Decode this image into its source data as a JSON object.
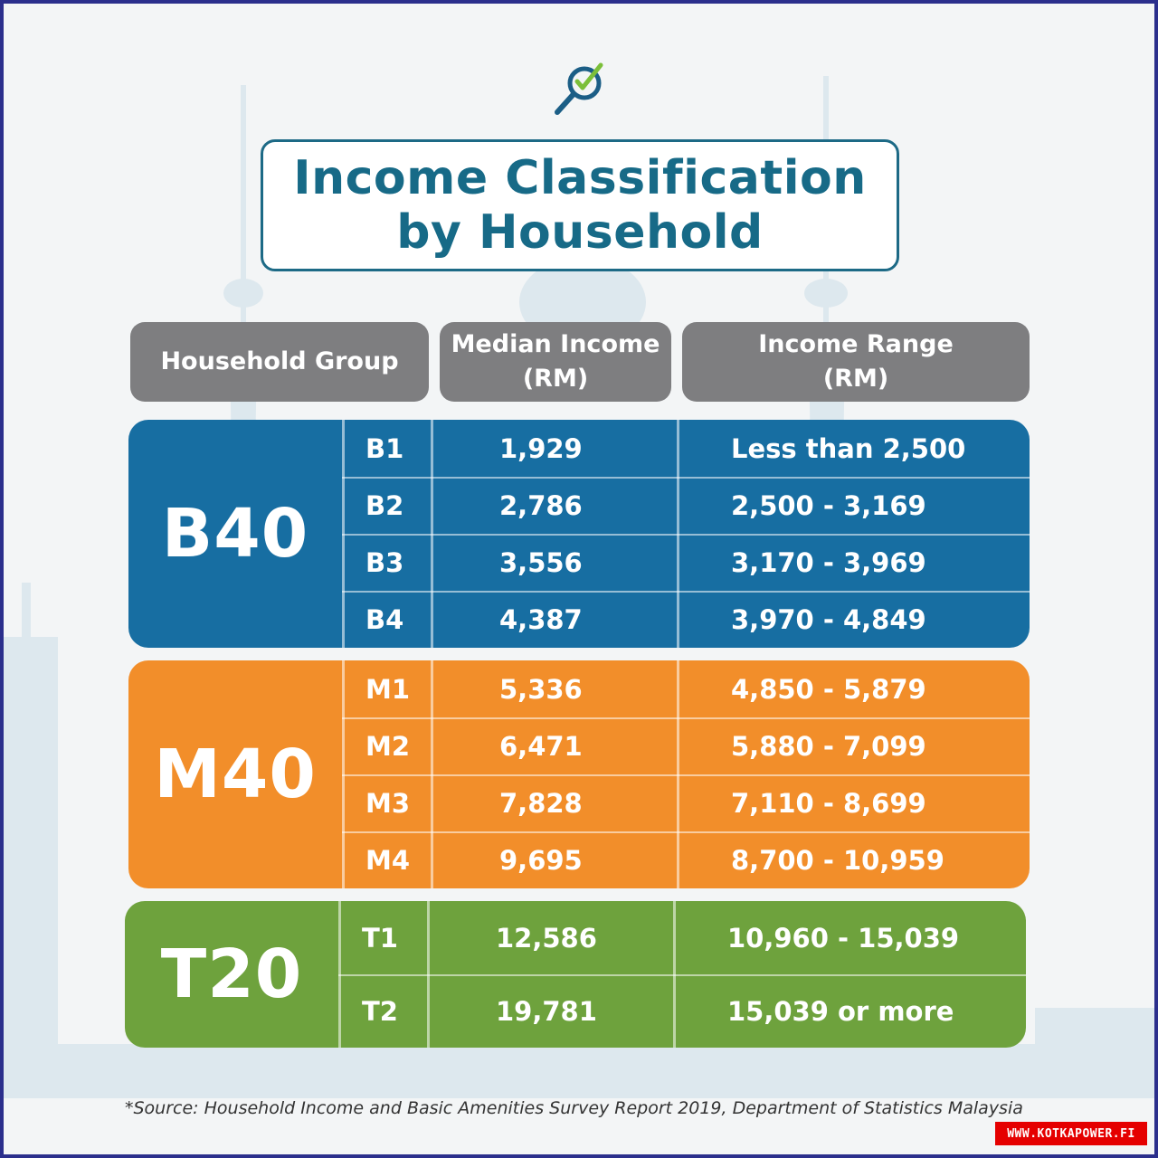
{
  "title": {
    "line1": "Income Classification",
    "line2": "by Household"
  },
  "header": {
    "group": "Household Group",
    "median_line1": "Median Income",
    "median_line2": "(RM)",
    "range_line1": "Income Range",
    "range_line2": "(RM)"
  },
  "groups": {
    "b40": {
      "label": "B40",
      "color": "#176ea2",
      "rows": [
        {
          "sub": "B1",
          "median": "1,929",
          "range": "Less than  2,500"
        },
        {
          "sub": "B2",
          "median": "2,786",
          "range": "2,500 - 3,169"
        },
        {
          "sub": "B3",
          "median": "3,556",
          "range": "3,170 - 3,969"
        },
        {
          "sub": "B4",
          "median": "4,387",
          "range": "3,970 - 4,849"
        }
      ]
    },
    "m40": {
      "label": "M40",
      "color": "#f28e2a",
      "rows": [
        {
          "sub": "M1",
          "median": "5,336",
          "range": "4,850 - 5,879"
        },
        {
          "sub": "M2",
          "median": "6,471",
          "range": "5,880 - 7,099"
        },
        {
          "sub": "M3",
          "median": "7,828",
          "range": "7,110 - 8,699"
        },
        {
          "sub": "M4",
          "median": "9,695",
          "range": "8,700 - 10,959"
        }
      ]
    },
    "t20": {
      "label": "T20",
      "color": "#6ea23d",
      "rows": [
        {
          "sub": "T1",
          "median": "12,586",
          "range": "10,960 - 15,039"
        },
        {
          "sub": "T2",
          "median": "19,781",
          "range": "15,039 or more"
        }
      ]
    }
  },
  "source": "*Source:  Household Income and Basic Amenities Survey Report 2019, Department of Statistics Malaysia",
  "watermark": "WWW.KOTKAPOWER.FI",
  "colors": {
    "title": "#176a87",
    "header_bg": "#7e7e80",
    "frame": "#2b2f8c"
  },
  "icons": {
    "logo": "magnifier-check-icon"
  }
}
